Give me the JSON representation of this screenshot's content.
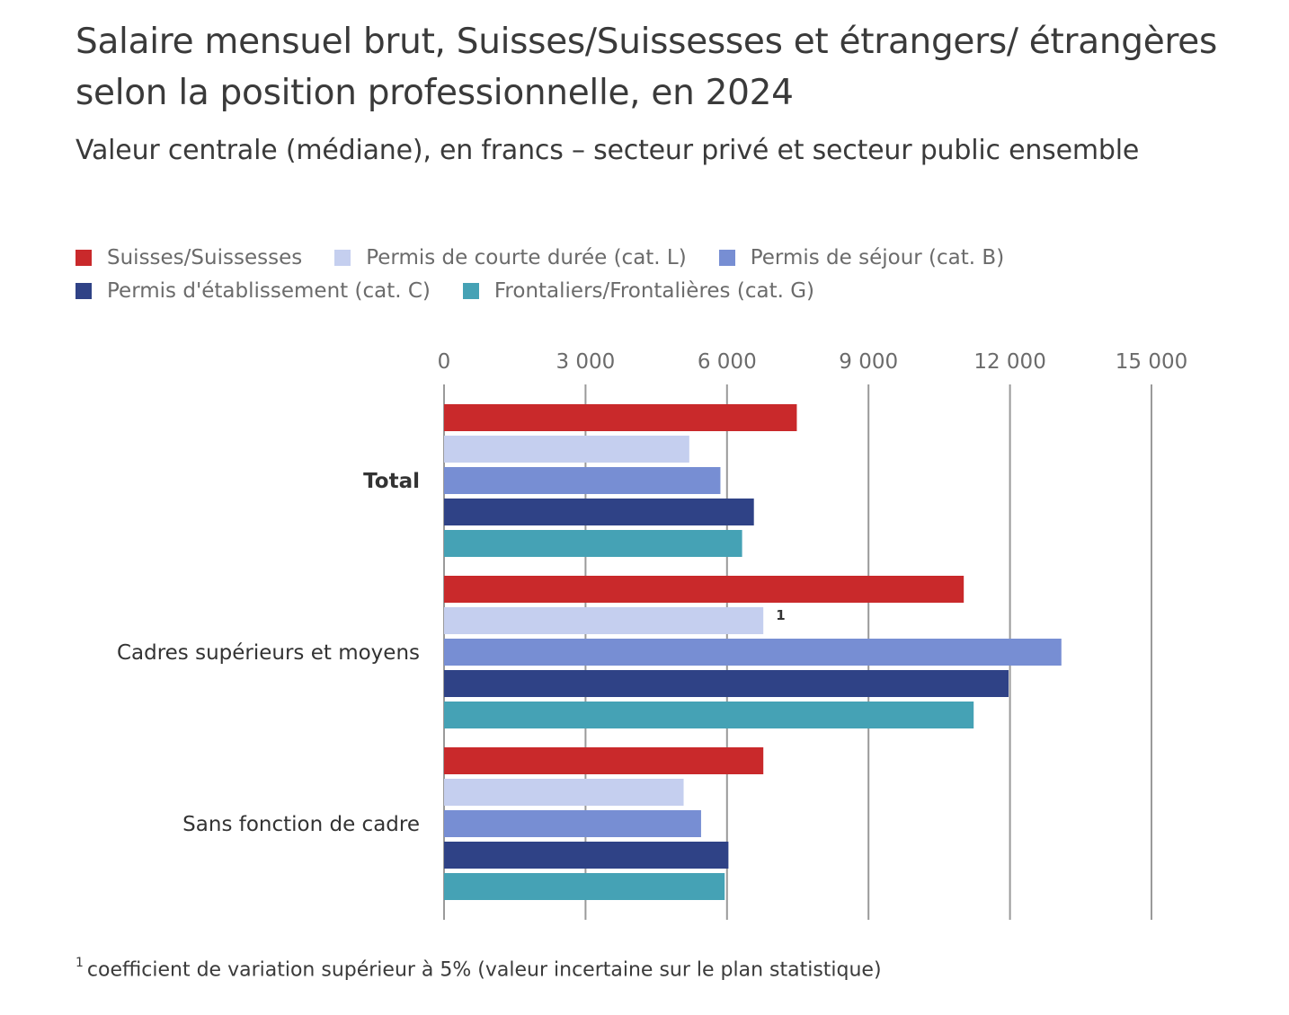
{
  "header": {
    "title": "Salaire mensuel brut, Suisses/Suissesses et étrangers/ étrangères selon la position professionnelle, en 2024",
    "subtitle": "Valeur centrale (médiane), en francs – secteur privé et secteur public ensemble"
  },
  "footnote": {
    "marker": "1",
    "text": "coefficient de variation supérieur à 5% (valeur incertaine sur le plan statistique)"
  },
  "chart_data": {
    "type": "bar",
    "orientation": "horizontal",
    "title": "Salaire mensuel brut, Suisses/Suissesses et étrangers/ étrangères selon la position professionnelle, en 2024",
    "subtitle": "Valeur centrale (médiane), en francs – secteur privé et secteur public ensemble",
    "xlabel": "",
    "ylabel": "",
    "xlim": [
      0,
      15000
    ],
    "xticks": [
      0,
      3000,
      6000,
      9000,
      12000,
      15000
    ],
    "xtick_labels": [
      "0",
      "3 000",
      "6 000",
      "9 000",
      "12 000",
      "15 000"
    ],
    "grid": true,
    "legend_position": "top-left",
    "categories": [
      "Total",
      "Cadres supérieurs et moyens",
      "Sans fonction de cadre"
    ],
    "category_bold": [
      true,
      false,
      false
    ],
    "series": [
      {
        "name": "Suisses/Suissesses",
        "color": "#c9292b",
        "values": [
          7480,
          11020,
          6770
        ]
      },
      {
        "name": "Permis de courte durée (cat. L)",
        "color": "#c5cfef",
        "values": [
          5200,
          6770,
          5080
        ]
      },
      {
        "name": "Permis de séjour (cat. B)",
        "color": "#778ed3",
        "values": [
          5860,
          13090,
          5450
        ]
      },
      {
        "name": "Permis d'établissement (cat. C)",
        "color": "#2f4286",
        "values": [
          6570,
          11970,
          6030
        ]
      },
      {
        "name": "Frontaliers/Frontalières (cat. G)",
        "color": "#45a2b5",
        "values": [
          6320,
          11230,
          5950
        ]
      }
    ],
    "annotations": [
      {
        "category": "Cadres supérieurs et moyens",
        "series": "Permis de courte durée (cat. L)",
        "text": "1"
      }
    ]
  }
}
